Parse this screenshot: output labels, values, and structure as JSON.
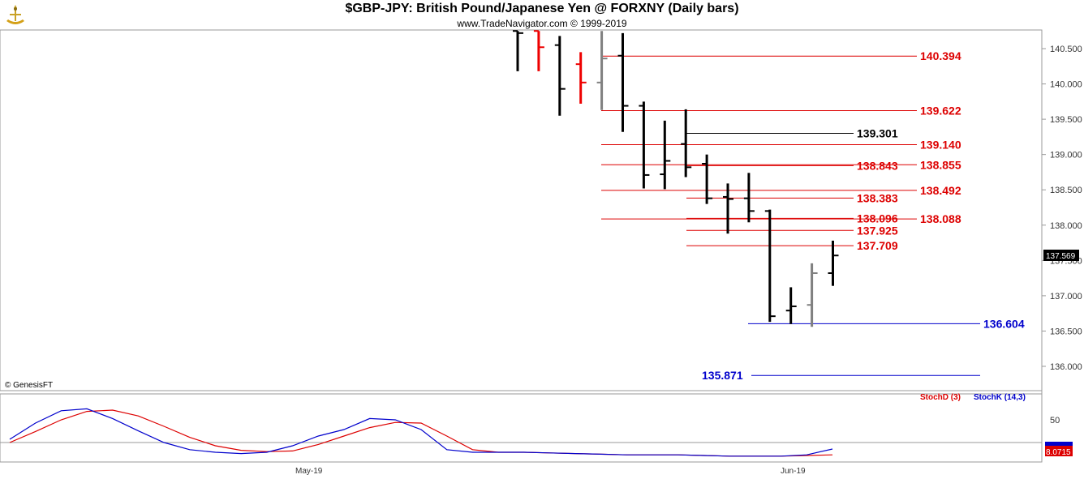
{
  "header": {
    "title": "$GBP-JPY:  British Pound/Japanese Yen @ FORXNY  (Daily bars)",
    "subtitle": "www.TradeNavigator.com © 1999-2019",
    "copyright": "© GenesisFT"
  },
  "colors": {
    "up_bar": "#000000",
    "down_bar": "#ee0000",
    "neutral_bar": "#808080",
    "resistance": "#dd0000",
    "pivot": "#000000",
    "support": "#0000cc",
    "stoch_d": "#dd0000",
    "stoch_k": "#0000cc"
  },
  "chart_data": [
    {
      "type": "ohlc",
      "title": "$GBP-JPY:  British Pound/Japanese Yen @ FORXNY  (Daily bars)",
      "ylim": [
        135.6,
        140.85
      ],
      "y_ticks": [
        "140.500",
        "140.000",
        "139.500",
        "139.000",
        "138.500",
        "138.000",
        "137.500",
        "137.000",
        "136.500",
        "136.000"
      ],
      "last_price": "137.569",
      "x_ticks": [
        "May-19",
        "Jun-19"
      ],
      "bars": [
        {
          "o": 140.75,
          "h": 140.75,
          "l": 140.18,
          "c": 140.72,
          "color": "black"
        },
        {
          "o": 140.75,
          "h": 140.75,
          "l": 140.18,
          "c": 140.52,
          "color": "red"
        },
        {
          "o": 140.55,
          "h": 140.68,
          "l": 139.55,
          "c": 139.93,
          "color": "black"
        },
        {
          "o": 140.28,
          "h": 140.45,
          "l": 139.72,
          "c": 140.02,
          "color": "red"
        },
        {
          "o": 140.02,
          "h": 140.75,
          "l": 139.63,
          "c": 140.36,
          "color": "gray"
        },
        {
          "o": 140.4,
          "h": 140.72,
          "l": 139.32,
          "c": 139.69,
          "color": "black"
        },
        {
          "o": 139.69,
          "h": 139.75,
          "l": 138.52,
          "c": 138.71,
          "color": "black"
        },
        {
          "o": 138.72,
          "h": 139.48,
          "l": 138.51,
          "c": 138.91,
          "color": "black"
        },
        {
          "o": 139.15,
          "h": 139.64,
          "l": 138.68,
          "c": 138.82,
          "color": "black"
        },
        {
          "o": 138.87,
          "h": 139.0,
          "l": 138.3,
          "c": 138.38,
          "color": "black"
        },
        {
          "o": 138.4,
          "h": 138.59,
          "l": 137.88,
          "c": 138.37,
          "color": "black"
        },
        {
          "o": 138.38,
          "h": 138.74,
          "l": 138.04,
          "c": 138.2,
          "color": "black"
        },
        {
          "o": 138.2,
          "h": 138.22,
          "l": 136.63,
          "c": 136.71,
          "color": "black"
        },
        {
          "o": 136.79,
          "h": 137.12,
          "l": 136.6,
          "c": 136.85,
          "color": "black"
        },
        {
          "o": 136.87,
          "h": 137.46,
          "l": 136.56,
          "c": 137.32,
          "color": "gray"
        },
        {
          "o": 137.32,
          "h": 137.78,
          "l": 137.14,
          "c": 137.57,
          "color": "black"
        }
      ],
      "levels": [
        {
          "value": 140.394,
          "label": "140.394",
          "kind": "resistance"
        },
        {
          "value": 139.622,
          "label": "139.622",
          "kind": "resistance"
        },
        {
          "value": 139.301,
          "label": "139.301",
          "kind": "pivot"
        },
        {
          "value": 139.14,
          "label": "139.140",
          "kind": "resistance"
        },
        {
          "value": 138.843,
          "label": "138.843",
          "kind": "resistance"
        },
        {
          "value": 138.855,
          "label": "138.855",
          "kind": "resistance"
        },
        {
          "value": 138.492,
          "label": "138.492",
          "kind": "resistance"
        },
        {
          "value": 138.383,
          "label": "138.383",
          "kind": "resistance"
        },
        {
          "value": 138.096,
          "label": "138.096",
          "kind": "resistance"
        },
        {
          "value": 138.088,
          "label": "138.088",
          "kind": "resistance"
        },
        {
          "value": 137.925,
          "label": "137.925",
          "kind": "resistance"
        },
        {
          "value": 137.709,
          "label": "137.709",
          "kind": "resistance"
        },
        {
          "value": 136.604,
          "label": "136.604",
          "kind": "support"
        },
        {
          "value": 135.871,
          "label": "135.871",
          "kind": "support"
        }
      ]
    },
    {
      "type": "line",
      "ylim": [
        0,
        100
      ],
      "y_ticks": [
        "50"
      ],
      "legend": [
        "StochD (3)",
        "StochK (14,3)"
      ],
      "last_value": "8.0715",
      "series": [
        {
          "name": "StochD (3)",
          "values": [
            25,
            42,
            60,
            73,
            75,
            66,
            50,
            33,
            20,
            13,
            11,
            12,
            22,
            35,
            48,
            56,
            55,
            35,
            14,
            10,
            10,
            9,
            8,
            7,
            6,
            6,
            6,
            5,
            4,
            4,
            4,
            5,
            6
          ]
        },
        {
          "name": "StochK (14,3)",
          "values": [
            30,
            55,
            74,
            77,
            62,
            43,
            25,
            14,
            10,
            8,
            10,
            20,
            35,
            45,
            62,
            60,
            45,
            14,
            10,
            10,
            10,
            9,
            8,
            7,
            6,
            6,
            6,
            5,
            4,
            4,
            4,
            6,
            15
          ]
        }
      ]
    }
  ]
}
